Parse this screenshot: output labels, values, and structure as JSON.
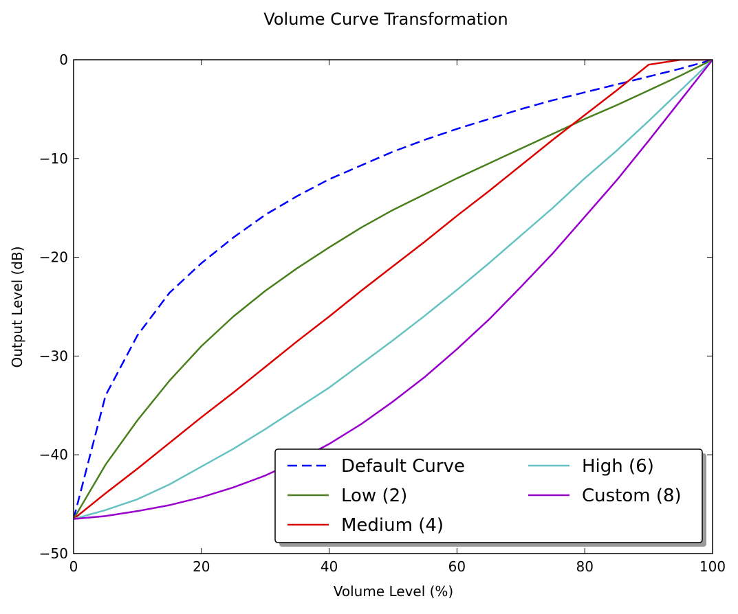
{
  "chart_data": {
    "type": "line",
    "title": "Volume Curve Transformation",
    "xlabel": "Volume Level (%)",
    "ylabel": "Output Level (dB)",
    "xlim": [
      0,
      100
    ],
    "ylim": [
      -50,
      0
    ],
    "xticks": [
      0,
      20,
      40,
      60,
      80,
      100
    ],
    "yticks": [
      0,
      -10,
      -20,
      -30,
      -40,
      -50
    ],
    "grid": false,
    "legend_placement": "lower-right",
    "legend_columns": 2,
    "x": [
      0,
      5,
      10,
      15,
      20,
      25,
      30,
      35,
      40,
      45,
      50,
      55,
      60,
      65,
      70,
      75,
      80,
      85,
      90,
      95,
      100
    ],
    "series": [
      {
        "name": "Default Curve",
        "color": "#0000ff",
        "dash": "dashed",
        "values": [
          -46.5,
          -34.0,
          -27.9,
          -23.6,
          -20.6,
          -18.0,
          -15.7,
          -13.8,
          -12.1,
          -10.7,
          -9.3,
          -8.1,
          -7.0,
          -6.0,
          -5.0,
          -4.1,
          -3.3,
          -2.5,
          -1.7,
          -0.9,
          0
        ]
      },
      {
        "name": "Low (2)",
        "color": "#4a7f1d",
        "dash": "solid",
        "values": [
          -46.5,
          -41.0,
          -36.5,
          -32.5,
          -29.0,
          -26.0,
          -23.4,
          -21.1,
          -19.0,
          -17.0,
          -15.2,
          -13.6,
          -12.0,
          -10.5,
          -9.0,
          -7.5,
          -6.0,
          -4.6,
          -3.1,
          -1.6,
          0
        ]
      },
      {
        "name": "Medium (4)",
        "color": "#dd0000",
        "dash": "solid",
        "values": [
          -46.5,
          -43.9,
          -41.4,
          -38.8,
          -36.2,
          -33.7,
          -31.1,
          -28.5,
          -26.0,
          -23.4,
          -20.9,
          -18.4,
          -15.8,
          -13.3,
          -10.7,
          -8.1,
          -5.6,
          -3.1,
          -0.5,
          0,
          0
        ]
      },
      {
        "name": "High (6)",
        "color": "#66c2c2",
        "dash": "solid",
        "values": [
          -46.5,
          -45.6,
          -44.5,
          -43.0,
          -41.2,
          -39.4,
          -37.4,
          -35.3,
          -33.2,
          -30.8,
          -28.4,
          -25.9,
          -23.3,
          -20.6,
          -17.8,
          -15.0,
          -12.0,
          -9.2,
          -6.2,
          -3.1,
          0
        ]
      },
      {
        "name": "Custom (8)",
        "color": "#9900cc",
        "dash": "solid",
        "values": [
          -46.5,
          -46.2,
          -45.7,
          -45.1,
          -44.3,
          -43.3,
          -42.1,
          -40.6,
          -38.9,
          -36.9,
          -34.6,
          -32.1,
          -29.3,
          -26.3,
          -23.0,
          -19.6,
          -15.9,
          -12.2,
          -8.2,
          -4.1,
          0
        ]
      }
    ]
  }
}
